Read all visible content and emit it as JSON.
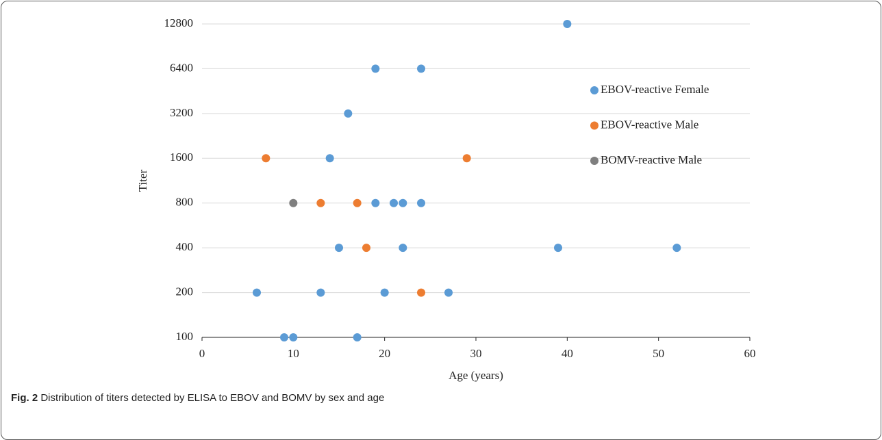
{
  "chart_data": {
    "type": "scatter",
    "x_label": "Age (years)",
    "y_label": "Titer",
    "xlim": [
      0,
      60
    ],
    "xticks": [
      0,
      10,
      20,
      30,
      40,
      50,
      60
    ],
    "ylim": [
      100,
      12800
    ],
    "yticks": [
      100,
      200,
      400,
      800,
      1600,
      3200,
      6400,
      12800
    ],
    "y_log_base": 2,
    "grid": true,
    "legend": "right",
    "series": [
      {
        "name": "EBOV-reactive Female",
        "color": "#5b9bd5",
        "x": [
          40,
          19,
          24,
          16,
          14,
          19,
          21,
          22,
          24,
          15,
          22,
          39,
          52,
          6,
          13,
          20,
          27,
          9,
          10,
          17
        ],
        "values": [
          12800,
          6400,
          6400,
          3200,
          1600,
          800,
          800,
          800,
          800,
          400,
          400,
          400,
          400,
          200,
          200,
          200,
          200,
          100,
          100,
          100
        ]
      },
      {
        "name": "EBOV-reactive Male",
        "color": "#ed7d31",
        "x": [
          7,
          29,
          13,
          17,
          18,
          24
        ],
        "values": [
          1600,
          1600,
          800,
          800,
          400,
          200
        ]
      },
      {
        "name": "BOMV-reactive Male",
        "color": "#7f7f7f",
        "x": [
          10
        ],
        "values": [
          800
        ]
      }
    ]
  },
  "caption": {
    "label": "Fig. 2",
    "text": "Distribution of titers detected by ELISA to EBOV and BOMV by sex and age"
  }
}
